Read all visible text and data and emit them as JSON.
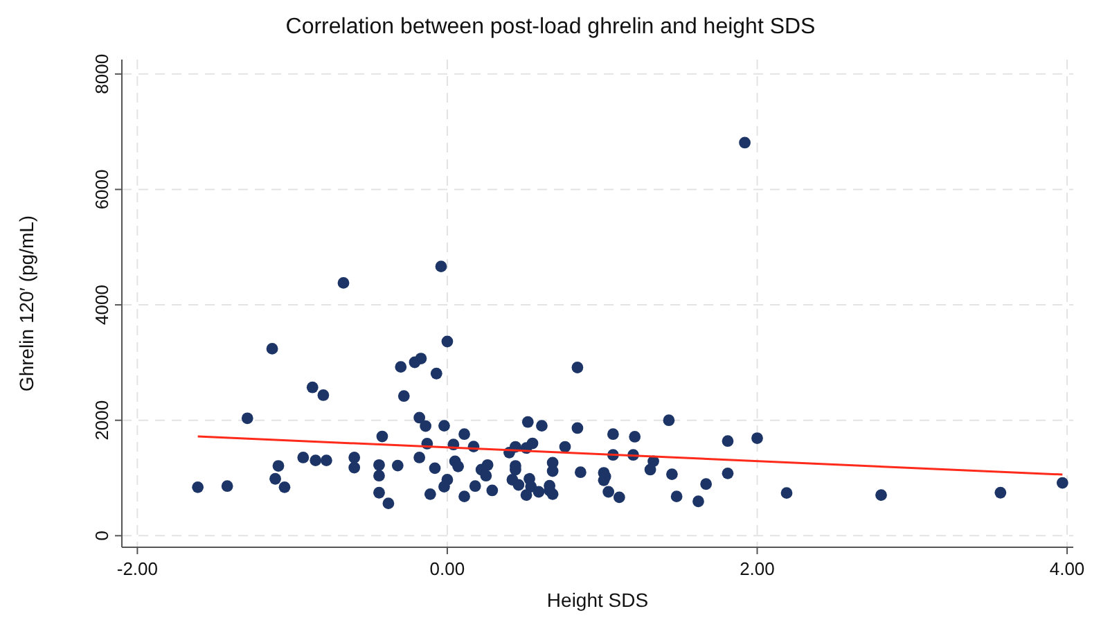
{
  "chart_data": {
    "type": "scatter",
    "title": "Correlation between post-load ghrelin and height SDS",
    "xlabel": "Height SDS",
    "ylabel": "Ghrelin 120′ (pg/mL)",
    "xlim": [
      -2.1,
      4.04
    ],
    "ylim": [
      -200,
      8250
    ],
    "xticks": [
      {
        "value": -2,
        "label": "-2.00"
      },
      {
        "value": 0,
        "label": "0.00"
      },
      {
        "value": 2,
        "label": "2.00"
      },
      {
        "value": 4,
        "label": "4.00"
      }
    ],
    "yticks": [
      0,
      2000,
      4000,
      6000,
      8000
    ],
    "grid": true,
    "series": [
      {
        "color": "#1c3566",
        "marker": "circle",
        "x": [
          -1.61,
          -1.42,
          -1.29,
          -1.13,
          -1.09,
          -1.11,
          -1.05,
          -0.93,
          -0.87,
          -0.8,
          -0.85,
          -0.78,
          -0.67,
          -0.6,
          -0.6,
          -0.42,
          -0.44,
          -0.44,
          -0.44,
          -0.38,
          -0.32,
          -0.3,
          -0.28,
          -0.21,
          -0.17,
          -0.18,
          -0.14,
          -0.18,
          -0.13,
          -0.08,
          -0.07,
          -0.04,
          0,
          -0.02,
          -0.11,
          0,
          -0.02,
          0.04,
          0.05,
          0.07,
          0.11,
          0.11,
          0.17,
          0.18,
          0.29,
          0.22,
          0.25,
          0.26,
          0.4,
          0.44,
          0.44,
          0.44,
          0.42,
          0.46,
          0.51,
          0.52,
          0.55,
          0.61,
          0.53,
          0.54,
          0.51,
          0.59,
          0.68,
          0.68,
          0.66,
          0.66,
          0.68,
          0.76,
          0.84,
          0.84,
          0.86,
          1.01,
          1.02,
          1.01,
          1.04,
          1.07,
          1.07,
          1.11,
          1.21,
          1.2,
          1.33,
          1.31,
          1.43,
          1.45,
          1.48,
          1.62,
          1.67,
          1.81,
          1.81,
          2,
          1.92,
          2.19,
          2.8,
          3.57,
          3.97
        ],
        "values": [
          840,
          860,
          2035,
          3240,
          1210,
          985,
          840,
          1355,
          2570,
          2435,
          1305,
          1305,
          4380,
          1355,
          1180,
          1720,
          1225,
          1040,
          745,
          560,
          1215,
          2925,
          2420,
          3005,
          3070,
          2045,
          1900,
          1355,
          1595,
          1170,
          2810,
          4665,
          3365,
          1905,
          720,
          970,
          850,
          1580,
          1290,
          1200,
          1760,
          680,
          1545,
          860,
          785,
          1145,
          1040,
          1225,
          1440,
          1540,
          1210,
          1145,
          970,
          880,
          1520,
          1970,
          1600,
          1905,
          985,
          850,
          705,
          760,
          1265,
          1120,
          865,
          785,
          720,
          1540,
          2915,
          1865,
          1100,
          1090,
          1025,
          960,
          760,
          1760,
          1400,
          665,
          1715,
          1400,
          1290,
          1145,
          2000,
          1065,
          680,
          595,
          895,
          1640,
          1080,
          1690,
          6810,
          740,
          705,
          745,
          915
        ]
      },
      {
        "type": "line",
        "color": "#ff2a1a",
        "x": [
          -1.61,
          3.97
        ],
        "values": [
          1720,
          1060
        ],
        "marker": "none"
      }
    ]
  }
}
